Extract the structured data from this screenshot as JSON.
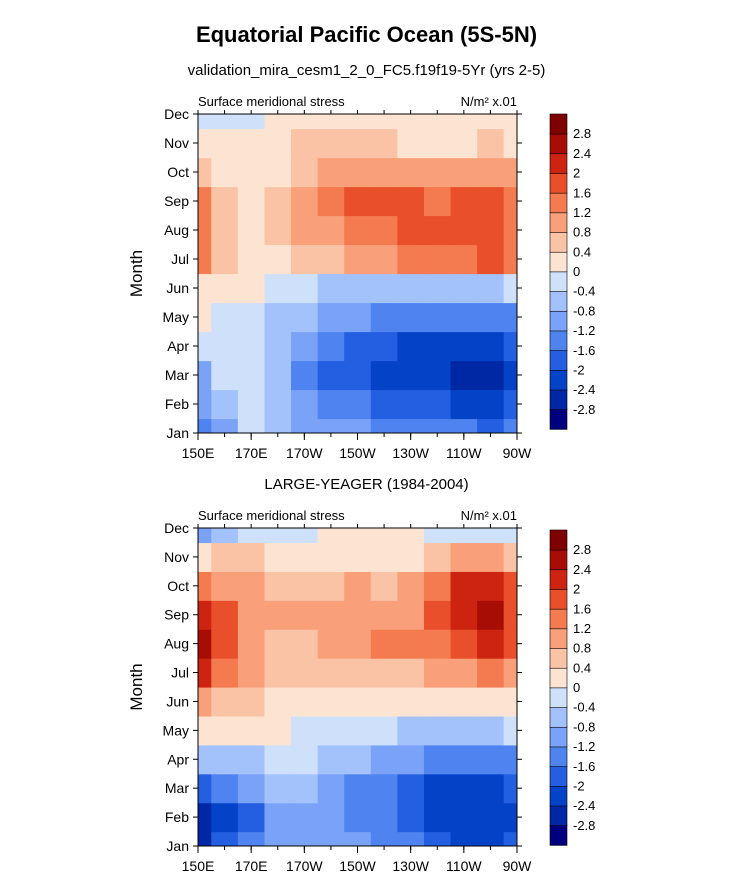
{
  "chart_data": [
    {
      "type": "heatmap",
      "title": "Equatorial Pacific Ocean (5S-5N)",
      "subtitle": "validation_mira_cesm1_2_0_FC5.f19f19-5Yr (yrs 2-5)",
      "left_string": "Surface meridional stress",
      "units": "N/m² x.01",
      "xlabel": "",
      "ylabel": "Month",
      "x_ticks": [
        "150E",
        "170E",
        "170W",
        "150W",
        "130W",
        "110W",
        "90W"
      ],
      "x_lon_east": [
        150,
        170,
        190,
        210,
        230,
        250,
        270
      ],
      "y_ticks": [
        "Jan",
        "Feb",
        "Mar",
        "Apr",
        "May",
        "Jun",
        "Jul",
        "Aug",
        "Sep",
        "Oct",
        "Nov",
        "Dec"
      ],
      "levels": [
        "-2.8",
        "-2.4",
        "-2",
        "-1.6",
        "-1.2",
        "-0.8",
        "-0.4",
        "0",
        "0.4",
        "0.8",
        "1.2",
        "1.6",
        "2",
        "2.4",
        "2.8"
      ],
      "colors": [
        "#00007f",
        "#0028a4",
        "#0442c8",
        "#235fe0",
        "#4f83f0",
        "#7aa2f7",
        "#a3c1fb",
        "#cfe0fb",
        "#fde4d2",
        "#fbc3a6",
        "#f9a07a",
        "#f47a4f",
        "#e84f2a",
        "#cc2410",
        "#a80d05",
        "#7f0000"
      ],
      "values": [
        [
          -1.3,
          -0.9,
          -0.4,
          -0.8,
          -0.9,
          -1.0,
          -1.2,
          -1.3,
          -1.4,
          -1.5,
          -1.6,
          -1.7,
          -1.6
        ],
        [
          -1.1,
          -0.5,
          -0.2,
          -0.8,
          -1.0,
          -1.3,
          -1.6,
          -1.8,
          -1.9,
          -2.0,
          -2.1,
          -2.1,
          -2.0
        ],
        [
          -0.9,
          -0.4,
          -0.3,
          -0.7,
          -1.3,
          -1.7,
          -2.0,
          -2.2,
          -2.2,
          -2.3,
          -2.5,
          -2.6,
          -2.3
        ],
        [
          -0.4,
          -0.3,
          -0.4,
          -0.7,
          -1.1,
          -1.5,
          -1.8,
          -2.0,
          -2.1,
          -2.1,
          -2.2,
          -2.2,
          -2.0
        ],
        [
          0.1,
          -0.2,
          -0.3,
          -0.5,
          -0.8,
          -1.0,
          -1.2,
          -1.3,
          -1.4,
          -1.4,
          -1.5,
          -1.5,
          -1.4
        ],
        [
          0.3,
          0.2,
          0.1,
          -0.2,
          -0.3,
          -0.5,
          -0.6,
          -0.6,
          -0.6,
          -0.6,
          -0.5,
          -0.5,
          -0.4
        ],
        [
          1.3,
          0.4,
          0.2,
          0.3,
          0.4,
          0.6,
          0.8,
          1.0,
          1.2,
          1.4,
          1.5,
          1.6,
          1.3
        ],
        [
          1.4,
          0.4,
          0.3,
          0.5,
          0.8,
          1.0,
          1.3,
          1.5,
          1.6,
          1.7,
          1.7,
          1.7,
          1.4
        ],
        [
          1.2,
          0.4,
          0.3,
          0.4,
          0.9,
          1.2,
          1.6,
          1.7,
          1.6,
          1.5,
          1.6,
          1.7,
          1.3
        ],
        [
          0.5,
          0.3,
          0.3,
          0.3,
          0.6,
          0.8,
          1.0,
          1.0,
          0.9,
          0.9,
          1.0,
          1.1,
          0.8
        ],
        [
          0.0,
          0.1,
          0.3,
          0.3,
          0.4,
          0.4,
          0.4,
          0.4,
          0.3,
          0.3,
          0.3,
          0.4,
          0.3
        ],
        [
          -0.4,
          -0.4,
          -0.1,
          0.1,
          0.2,
          0.2,
          0.1,
          0.1,
          0.1,
          0.1,
          0.2,
          0.2,
          0.3
        ]
      ]
    },
    {
      "type": "heatmap",
      "title": "LARGE-YEAGER (1984-2004)",
      "left_string": "Surface meridional stress",
      "units": "N/m² x.01",
      "xlabel": "",
      "ylabel": "Month",
      "x_ticks": [
        "150E",
        "170E",
        "170W",
        "150W",
        "130W",
        "110W",
        "90W"
      ],
      "x_lon_east": [
        150,
        170,
        190,
        210,
        230,
        250,
        270
      ],
      "y_ticks": [
        "Jan",
        "Feb",
        "Mar",
        "Apr",
        "May",
        "Jun",
        "Jul",
        "Aug",
        "Sep",
        "Oct",
        "Nov",
        "Dec"
      ],
      "levels": [
        "-2.8",
        "-2.4",
        "-2",
        "-1.6",
        "-1.2",
        "-0.8",
        "-0.4",
        "0",
        "0.4",
        "0.8",
        "1.2",
        "1.6",
        "2",
        "2.4",
        "2.8"
      ],
      "colors": [
        "#00007f",
        "#0028a4",
        "#0442c8",
        "#235fe0",
        "#4f83f0",
        "#7aa2f7",
        "#a3c1fb",
        "#cfe0fb",
        "#fde4d2",
        "#fbc3a6",
        "#f9a07a",
        "#f47a4f",
        "#e84f2a",
        "#cc2410",
        "#a80d05",
        "#7f0000"
      ],
      "values": [
        [
          -2.7,
          -2.0,
          -1.6,
          -1.2,
          -1.0,
          -1.0,
          -1.2,
          -1.4,
          -1.6,
          -1.9,
          -2.1,
          -2.2,
          -2.0
        ],
        [
          -2.6,
          -2.1,
          -1.8,
          -1.2,
          -0.9,
          -1.0,
          -1.3,
          -1.6,
          -2.0,
          -2.2,
          -2.3,
          -2.4,
          -2.1
        ],
        [
          -1.9,
          -1.6,
          -1.2,
          -0.8,
          -0.7,
          -0.9,
          -1.3,
          -1.6,
          -1.9,
          -2.1,
          -2.2,
          -2.2,
          -1.9
        ],
        [
          -0.6,
          -0.5,
          -0.5,
          -0.3,
          -0.3,
          -0.5,
          -0.8,
          -1.0,
          -1.2,
          -1.4,
          -1.5,
          -1.5,
          -1.3
        ],
        [
          0.2,
          0.2,
          0.2,
          0.0,
          -0.2,
          -0.3,
          -0.4,
          -0.4,
          -0.5,
          -0.6,
          -0.6,
          -0.5,
          -0.4
        ],
        [
          0.8,
          0.5,
          0.4,
          0.3,
          0.2,
          0.1,
          0.1,
          0.0,
          0.0,
          0.0,
          0.1,
          0.1,
          0.1
        ],
        [
          2.0,
          1.4,
          0.9,
          0.6,
          0.5,
          0.5,
          0.6,
          0.6,
          0.7,
          0.9,
          1.1,
          1.2,
          1.0
        ],
        [
          2.6,
          1.6,
          1.0,
          0.7,
          0.7,
          0.8,
          1.1,
          1.2,
          1.2,
          1.5,
          1.8,
          2.0,
          1.6
        ],
        [
          2.2,
          1.6,
          1.1,
          0.9,
          0.8,
          0.9,
          1.0,
          1.0,
          1.1,
          1.6,
          2.2,
          2.5,
          1.9
        ],
        [
          1.4,
          1.0,
          0.8,
          0.7,
          0.6,
          0.6,
          0.8,
          0.7,
          0.9,
          1.4,
          2.0,
          2.2,
          1.7
        ],
        [
          0.1,
          0.4,
          0.4,
          0.3,
          0.2,
          0.2,
          0.2,
          0.2,
          0.3,
          0.5,
          0.8,
          0.8,
          0.5
        ],
        [
          -0.9,
          -0.5,
          -0.3,
          -0.2,
          -0.1,
          0.0,
          0.2,
          0.2,
          0.2,
          -0.1,
          -0.3,
          -0.3,
          -0.3
        ]
      ]
    }
  ]
}
